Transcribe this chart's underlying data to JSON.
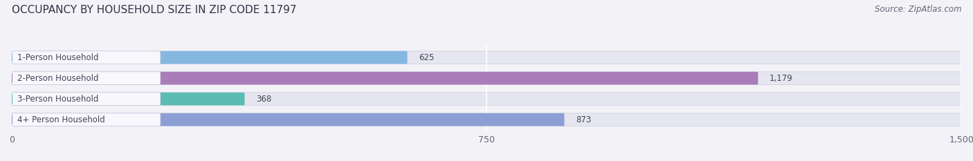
{
  "title": "OCCUPANCY BY HOUSEHOLD SIZE IN ZIP CODE 11797",
  "source": "Source: ZipAtlas.com",
  "categories": [
    "1-Person Household",
    "2-Person Household",
    "3-Person Household",
    "4+ Person Household"
  ],
  "values": [
    625,
    1179,
    368,
    873
  ],
  "bar_colors": [
    "#85b8e0",
    "#a97db8",
    "#5bbcb4",
    "#8b9fd4"
  ],
  "xlim": [
    0,
    1500
  ],
  "xticks": [
    0,
    750,
    1500
  ],
  "xticklabels": [
    "0",
    "750",
    "1,500"
  ],
  "title_fontsize": 11,
  "source_fontsize": 8.5,
  "label_fontsize": 8.5,
  "value_fontsize": 8.5,
  "bar_height": 0.62,
  "background_color": "#f2f2f7",
  "bar_bg_color": "#e6e6f0",
  "label_color": "#444455",
  "value_color": "#444455",
  "title_color": "#333344",
  "grid_color": "#ffffff",
  "label_box_color": "#f8f8fc"
}
